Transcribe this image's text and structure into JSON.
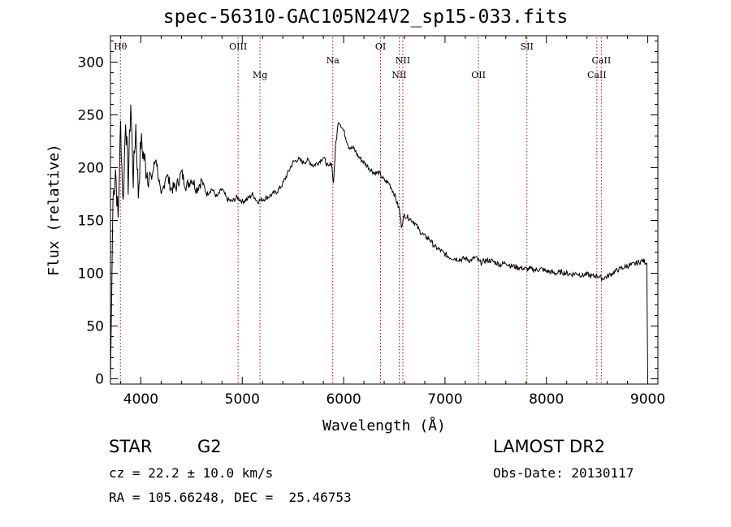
{
  "header": {
    "title": "spec-56310-GAC105N24V2_sp15-033.fits"
  },
  "info": {
    "class_label": "STAR",
    "subclass": "G2",
    "survey": "LAMOST DR2",
    "cz": "cz = 22.2 ± 10.0 km/s",
    "obs_date": "Obs-Date: 20130117",
    "coords": "RA = 105.66248, DEC =  25.46753"
  },
  "chart_data": {
    "type": "line",
    "title": "spec-56310-GAC105N24V2_sp15-033.fits",
    "xlabel": "Wavelength (Å)",
    "ylabel": "Flux (relative)",
    "xlim": [
      3700,
      9100
    ],
    "ylim": [
      -5,
      325
    ],
    "x_ticks": [
      4000,
      5000,
      6000,
      7000,
      8000,
      9000
    ],
    "y_ticks": [
      0,
      50,
      100,
      150,
      200,
      250,
      300
    ],
    "grid": false,
    "line_color": "#000000",
    "marker_color": "#cc0000",
    "series": [
      {
        "x": [
          3700,
          3725,
          3750,
          3775,
          3800,
          3825,
          3850,
          3875,
          3900,
          3925,
          3950,
          3975,
          4000,
          4050,
          4100,
          4150,
          4200,
          4250,
          4300,
          4350,
          4400,
          4450,
          4500,
          4550,
          4600,
          4650,
          4700,
          4750,
          4800,
          4850,
          4900,
          4950,
          5000,
          5050,
          5100,
          5150,
          5200,
          5250,
          5300,
          5350,
          5400,
          5450,
          5500,
          5550,
          5600,
          5650,
          5700,
          5750,
          5800,
          5850,
          5880,
          5900,
          5920,
          5950,
          6000,
          6050,
          6100,
          6150,
          6200,
          6250,
          6300,
          6350,
          6400,
          6450,
          6500,
          6550,
          6570,
          6600,
          6650,
          6700,
          6750,
          6800,
          6850,
          6900,
          6950,
          7000,
          7050,
          7100,
          7150,
          7200,
          7250,
          7300,
          7350,
          7400,
          7450,
          7500,
          7550,
          7600,
          7650,
          7700,
          7750,
          7800,
          7850,
          7900,
          7950,
          8000,
          8050,
          8100,
          8150,
          8200,
          8250,
          8300,
          8350,
          8400,
          8450,
          8500,
          8550,
          8600,
          8650,
          8700,
          8750,
          8800,
          8850,
          8900,
          8950,
          8990,
          9000
        ],
        "y": [
          0,
          170,
          200,
          150,
          240,
          165,
          250,
          185,
          262,
          190,
          240,
          175,
          225,
          200,
          188,
          210,
          170,
          195,
          180,
          182,
          195,
          182,
          190,
          180,
          188,
          175,
          180,
          172,
          180,
          170,
          168,
          172,
          168,
          170,
          175,
          168,
          170,
          172,
          175,
          178,
          185,
          195,
          205,
          208,
          205,
          207,
          202,
          205,
          210,
          200,
          205,
          185,
          220,
          245,
          235,
          220,
          218,
          210,
          205,
          200,
          195,
          195,
          188,
          185,
          175,
          160,
          145,
          155,
          152,
          148,
          140,
          135,
          132,
          125,
          122,
          118,
          115,
          114,
          113,
          114,
          112,
          115,
          110,
          112,
          112,
          110,
          108,
          110,
          107,
          106,
          105,
          104,
          104,
          103,
          104,
          102,
          101,
          100,
          101,
          100,
          99,
          100,
          98,
          99,
          97,
          98,
          95,
          97,
          100,
          103,
          105,
          107,
          108,
          110,
          112,
          110,
          0
        ]
      }
    ],
    "lines": [
      {
        "name": "Hθ",
        "x": 3798,
        "row": "top"
      },
      {
        "name": "OIII",
        "x": 4959,
        "row": "top"
      },
      {
        "name": "Mg",
        "x": 5175,
        "row": "low"
      },
      {
        "name": "Na",
        "x": 5893,
        "row": "mid"
      },
      {
        "name": "OI",
        "x": 6364,
        "row": "top"
      },
      {
        "name": "NII",
        "x": 6548,
        "row": "low"
      },
      {
        "name": "NII",
        "x": 6584,
        "row": "mid"
      },
      {
        "name": "OII",
        "x": 7330,
        "row": "low"
      },
      {
        "name": "SII",
        "x": 7808,
        "row": "top"
      },
      {
        "name": "CaII",
        "x": 8498,
        "row": "low"
      },
      {
        "name": "CaII",
        "x": 8542,
        "row": "mid"
      }
    ]
  }
}
